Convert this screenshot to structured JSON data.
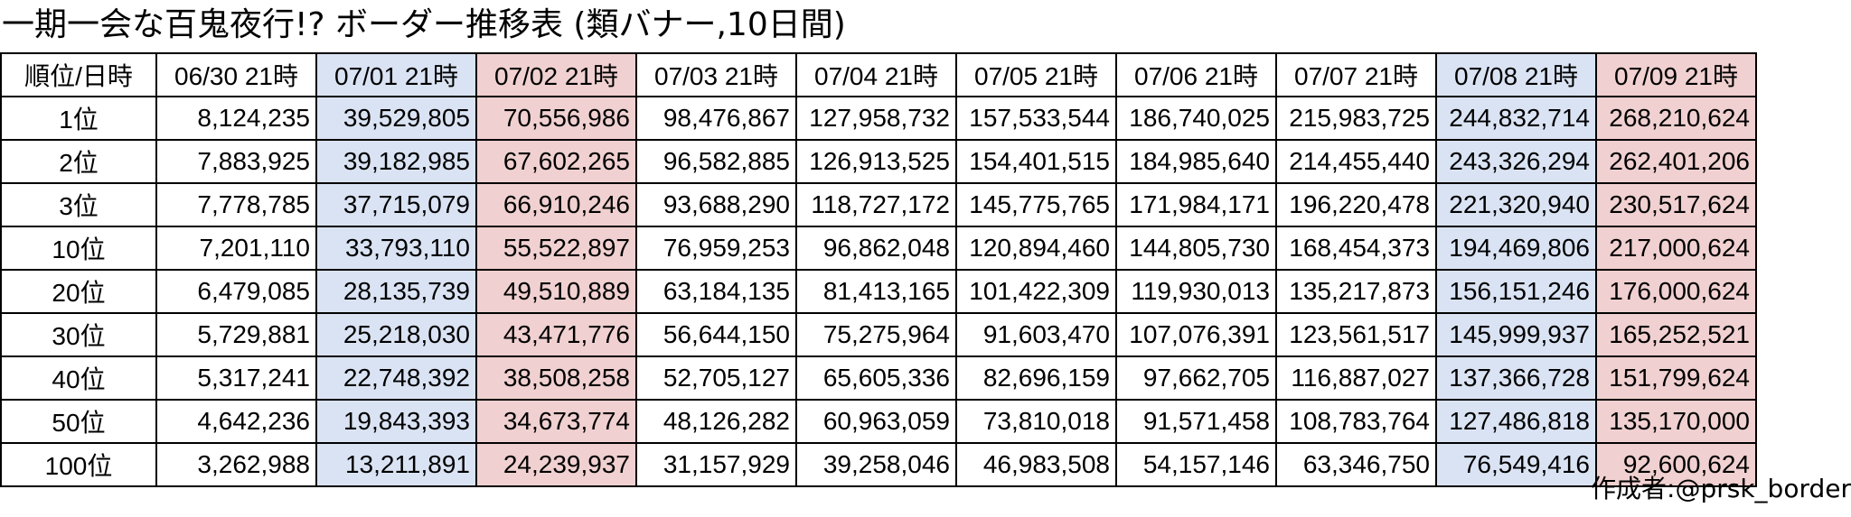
{
  "title": "一期一会な百鬼夜行!? ボーダー推移表  (類バナー,10日間)",
  "credit": "作成者:@prsk_border",
  "colors": {
    "blue_column": "#dae3f3",
    "pink_column": "#f0d0d0"
  },
  "table": {
    "header": [
      "順位/日時",
      "06/30 21時",
      "07/01 21時",
      "07/02 21時",
      "07/03 21時",
      "07/04 21時",
      "07/05 21時",
      "07/06 21時",
      "07/07 21時",
      "07/08 21時",
      "07/09 21時"
    ],
    "column_tint": [
      "",
      "",
      "blue",
      "pink",
      "",
      "",
      "",
      "",
      "",
      "blue",
      "pink"
    ],
    "rows": [
      {
        "rank": "1位",
        "values": [
          "8,124,235",
          "39,529,805",
          "70,556,986",
          "98,476,867",
          "127,958,732",
          "157,533,544",
          "186,740,025",
          "215,983,725",
          "244,832,714",
          "268,210,624"
        ]
      },
      {
        "rank": "2位",
        "values": [
          "7,883,925",
          "39,182,985",
          "67,602,265",
          "96,582,885",
          "126,913,525",
          "154,401,515",
          "184,985,640",
          "214,455,440",
          "243,326,294",
          "262,401,206"
        ]
      },
      {
        "rank": "3位",
        "values": [
          "7,778,785",
          "37,715,079",
          "66,910,246",
          "93,688,290",
          "118,727,172",
          "145,775,765",
          "171,984,171",
          "196,220,478",
          "221,320,940",
          "230,517,624"
        ]
      },
      {
        "rank": "10位",
        "values": [
          "7,201,110",
          "33,793,110",
          "55,522,897",
          "76,959,253",
          "96,862,048",
          "120,894,460",
          "144,805,730",
          "168,454,373",
          "194,469,806",
          "217,000,624"
        ]
      },
      {
        "rank": "20位",
        "values": [
          "6,479,085",
          "28,135,739",
          "49,510,889",
          "63,184,135",
          "81,413,165",
          "101,422,309",
          "119,930,013",
          "135,217,873",
          "156,151,246",
          "176,000,624"
        ]
      },
      {
        "rank": "30位",
        "values": [
          "5,729,881",
          "25,218,030",
          "43,471,776",
          "56,644,150",
          "75,275,964",
          "91,603,470",
          "107,076,391",
          "123,561,517",
          "145,999,937",
          "165,252,521"
        ]
      },
      {
        "rank": "40位",
        "values": [
          "5,317,241",
          "22,748,392",
          "38,508,258",
          "52,705,127",
          "65,605,336",
          "82,696,159",
          "97,662,705",
          "116,887,027",
          "137,366,728",
          "151,799,624"
        ]
      },
      {
        "rank": "50位",
        "values": [
          "4,642,236",
          "19,843,393",
          "34,673,774",
          "48,126,282",
          "60,963,059",
          "73,810,018",
          "91,571,458",
          "108,783,764",
          "127,486,818",
          "135,170,000"
        ]
      },
      {
        "rank": "100位",
        "values": [
          "3,262,988",
          "13,211,891",
          "24,239,937",
          "31,157,929",
          "39,258,046",
          "46,983,508",
          "54,157,146",
          "63,346,750",
          "76,549,416",
          "92,600,624"
        ]
      }
    ]
  }
}
